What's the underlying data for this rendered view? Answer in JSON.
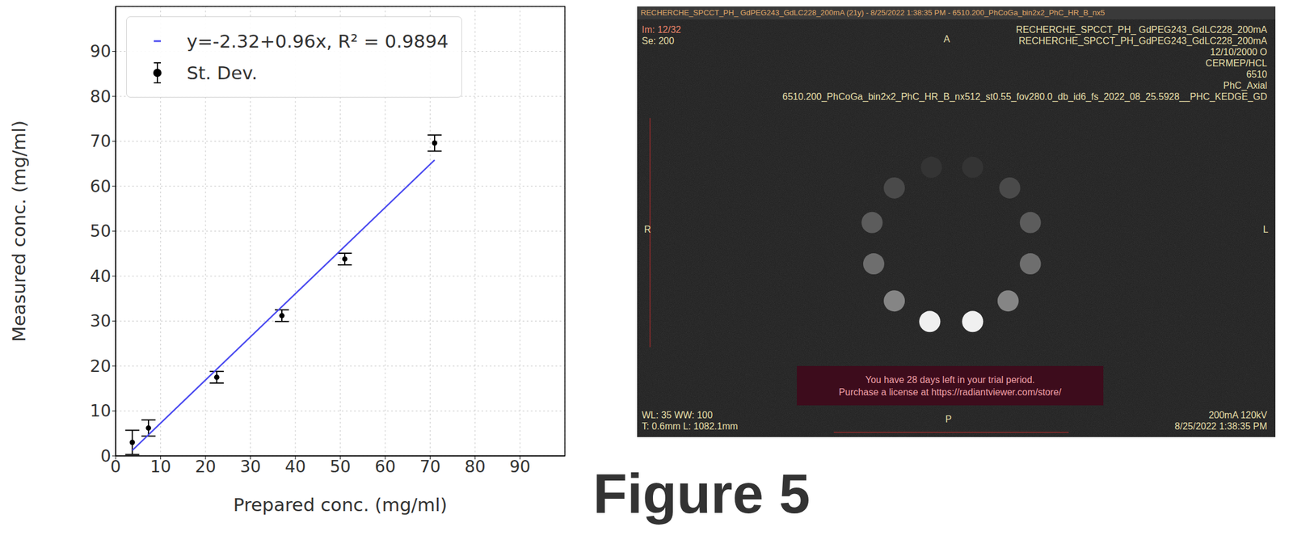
{
  "chart_data": {
    "type": "scatter",
    "x_label": "Prepared conc. (mg/ml)",
    "y_label": "Measured conc. (mg/ml)",
    "series": [
      {
        "name": "y=-2.32+0.96x, R² = 0.9894",
        "type": "line",
        "color": "#4b4bf0",
        "x": [
          3.7,
          71
        ],
        "values": [
          1.23,
          65.84
        ]
      },
      {
        "name": "St. Dev.",
        "type": "scatter",
        "color": "#000000",
        "marker": "circle",
        "x": [
          3.7,
          7.3,
          22.5,
          37,
          51,
          71
        ],
        "values": [
          3.0,
          6.2,
          17.5,
          31.2,
          43.8,
          69.6
        ],
        "errors": [
          2.7,
          1.8,
          1.3,
          1.3,
          1.3,
          1.8
        ]
      }
    ],
    "xlim": [
      0,
      100
    ],
    "ylim": [
      0,
      100
    ],
    "xticks": [
      0,
      10,
      20,
      30,
      40,
      50,
      60,
      70,
      80,
      90
    ],
    "yticks": [
      0,
      10,
      20,
      30,
      40,
      50,
      60,
      70,
      80,
      90
    ],
    "grid": true,
    "legend": "upper left"
  },
  "figure_label": "Figure 5",
  "screenshot": {
    "title_bar": "RECHERCHE_SPCCT_PH_ GdPEG243_GdLC228_200mA  (21y) - 8/25/2022 1:38:35 PM - 6510.200_PhCoGa_bin2x2_PhC_HR_B_nx5",
    "top_left": [
      "Im: 12/32",
      "Se: 200"
    ],
    "top_right": [
      "RECHERCHE_SPCCT_PH_ GdPEG243_GdLC228_200mA",
      "RECHERCHE_SPCCT_PH_GdPEG243_GdLC228_200mA",
      "12/10/2000 O",
      "CERMEP/HCL",
      "6510",
      "PhC_Axial",
      "6510.200_PhCoGa_bin2x2_PhC_HR_B_nx512_st0.55_fov280.0_db_id6_fs_2022_08_25.5928__PHC_KEDGE_GD"
    ],
    "orientation": {
      "top": "A",
      "bottom": "P",
      "left": "R",
      "right": "L"
    },
    "banner": [
      "You have 28 days left in your trial period.",
      "Purchase a license at https://radiantviewer.com/store/"
    ],
    "bottom_left": [
      "WL: 35 WW: 100",
      "T: 0.6mm L: 1082.1mm"
    ],
    "bottom_right": [
      "200mA 120kV",
      "8/25/2022 1:38:35 PM"
    ]
  }
}
